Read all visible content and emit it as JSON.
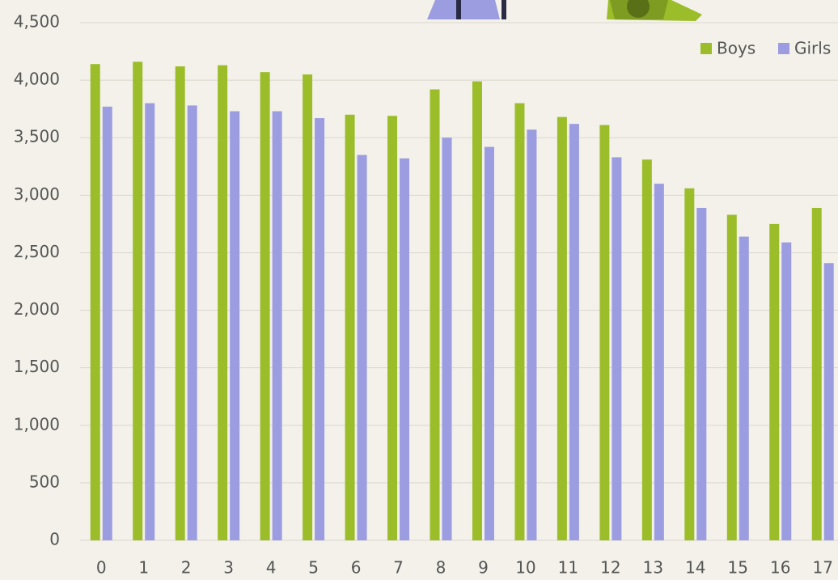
{
  "chart_data": {
    "type": "bar",
    "categories": [
      "0",
      "1",
      "2",
      "3",
      "4",
      "5",
      "6",
      "7",
      "8",
      "9",
      "10",
      "11",
      "12",
      "13",
      "14",
      "15",
      "16",
      "17"
    ],
    "series": [
      {
        "name": "Boys",
        "color": "#9cbd2a",
        "values": [
          4140,
          4160,
          4120,
          4130,
          4070,
          4050,
          3700,
          3690,
          3920,
          3990,
          3800,
          3680,
          3610,
          3310,
          3060,
          2830,
          2750,
          2890
        ]
      },
      {
        "name": "Girls",
        "color": "#9b9de0",
        "values": [
          3770,
          3800,
          3780,
          3730,
          3730,
          3670,
          3350,
          3320,
          3500,
          3420,
          3570,
          3620,
          3330,
          3100,
          2890,
          2640,
          2590,
          2410
        ]
      }
    ],
    "ylim": [
      0,
      4500
    ],
    "yticks": [
      0,
      500,
      {
        "value": 1000,
        "label": "1,000"
      },
      {
        "value": 1500,
        "label": "1,500"
      },
      {
        "value": 2000,
        "label": "2,000"
      },
      {
        "value": 2500,
        "label": "2,500"
      },
      {
        "value": 3000,
        "label": "3,000"
      },
      {
        "value": 3500,
        "label": "3,500"
      },
      {
        "value": 4000,
        "label": "4,000"
      },
      {
        "value": 4500,
        "label": "4,500"
      }
    ],
    "grid": true,
    "legend": "top-right"
  }
}
